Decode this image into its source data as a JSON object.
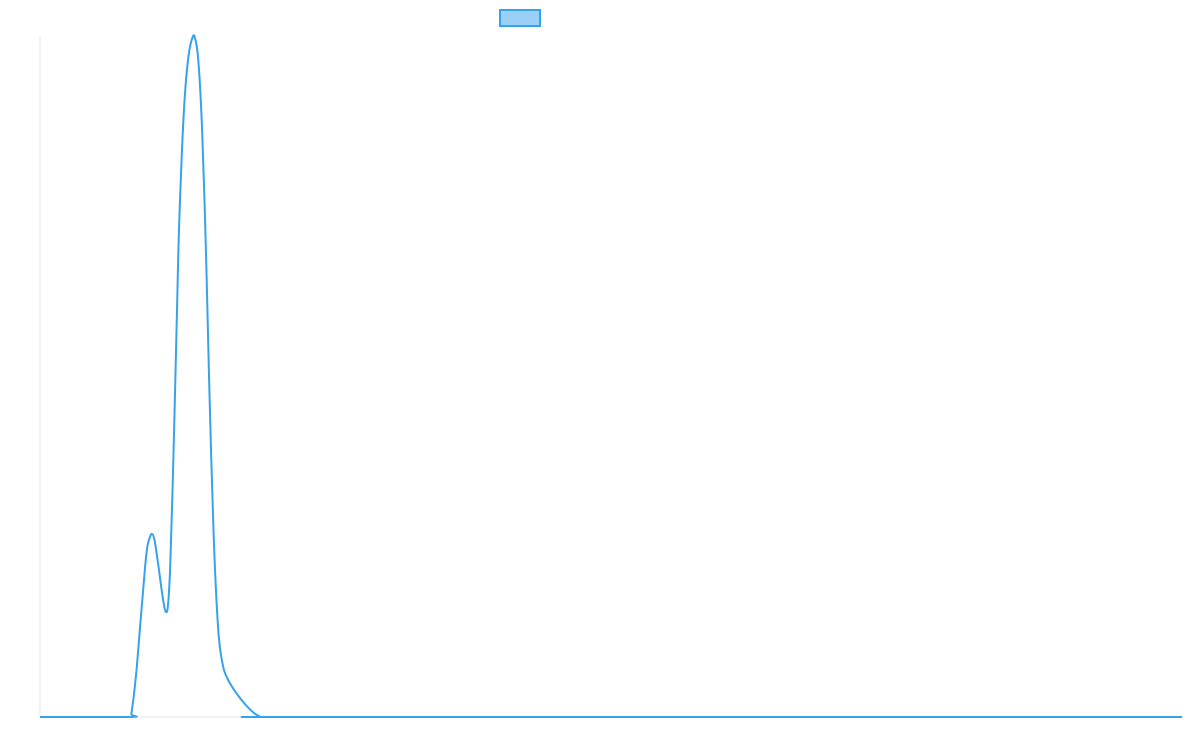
{
  "chart_data": {
    "type": "line",
    "title": "",
    "xlabel": "",
    "ylabel": "",
    "grid": false,
    "legend": {
      "placement": "top-center",
      "entries": [
        {
          "label": ""
        }
      ]
    },
    "series": [
      {
        "color": "#36a2eb",
        "fill_color": "#9ad0f5",
        "x": [
          0,
          3.9,
          4.0,
          4.2,
          4.4,
          4.6,
          4.7,
          4.8,
          4.9,
          5.0,
          5.1,
          5.2,
          5.3,
          5.4,
          5.5,
          5.6,
          5.7,
          5.8,
          5.9,
          6.0,
          6.1,
          6.3,
          6.5,
          6.7,
          6.8,
          6.9,
          7.0,
          7.1,
          7.2,
          7.3,
          7.4,
          7.6,
          7.8,
          8.0,
          8.2,
          8.4,
          8.6,
          8.8,
          9.0,
          9.2,
          9.4,
          9.6,
          9.7,
          9.8,
          10.0,
          10.5,
          11.0,
          11.5,
          12.0,
          50
        ],
        "y": [
          0,
          0,
          0.5,
          6,
          14,
          22,
          25,
          26.3,
          26.9,
          26.2,
          24.2,
          21.8,
          19.3,
          17,
          15.5,
          16.3,
          22,
          33,
          46,
          60,
          73,
          89,
          97,
          100,
          99.5,
          97.5,
          93,
          86,
          76,
          64,
          50,
          27,
          13,
          7.7,
          5.7,
          4.5,
          3.5,
          2.6,
          1.8,
          1.1,
          0.5,
          0.1,
          0,
          0,
          0,
          0,
          0,
          0,
          0,
          0
        ]
      }
    ],
    "xlim": [
      0,
      50
    ],
    "ylim": [
      0,
      100
    ]
  }
}
